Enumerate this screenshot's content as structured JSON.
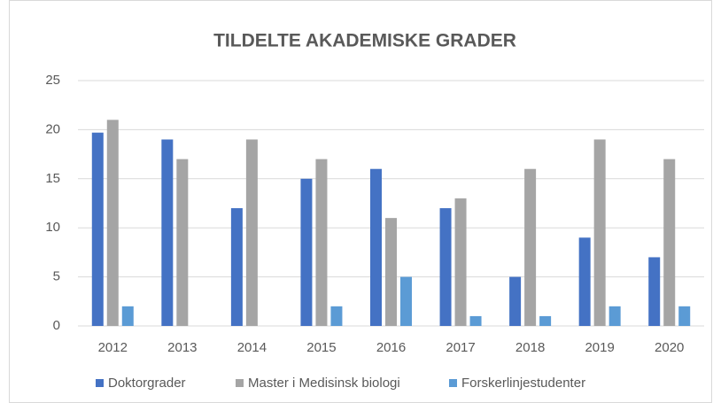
{
  "chart_data": {
    "type": "bar",
    "title": "TILDELTE AKADEMISKE GRADER",
    "categories": [
      "2012",
      "2013",
      "2014",
      "2015",
      "2016",
      "2017",
      "2018",
      "2019",
      "2020"
    ],
    "series": [
      {
        "name": "Doktorgrader",
        "color": "#4472c4",
        "values": [
          19.7,
          19,
          12,
          15,
          16,
          12,
          5,
          9,
          7
        ]
      },
      {
        "name": "Master i Medisinsk biologi",
        "color": "#a5a5a5",
        "values": [
          21,
          17,
          19,
          17,
          11,
          13,
          16,
          19,
          17
        ]
      },
      {
        "name": "Forskerlinjestudenter",
        "color": "#5b9bd5",
        "values": [
          2,
          0,
          0,
          2,
          5,
          1,
          1,
          2,
          2
        ]
      }
    ],
    "ylim": [
      0,
      25
    ],
    "yticks": [
      0,
      5,
      10,
      15,
      20,
      25
    ],
    "grid": true,
    "legend": "bottom"
  }
}
